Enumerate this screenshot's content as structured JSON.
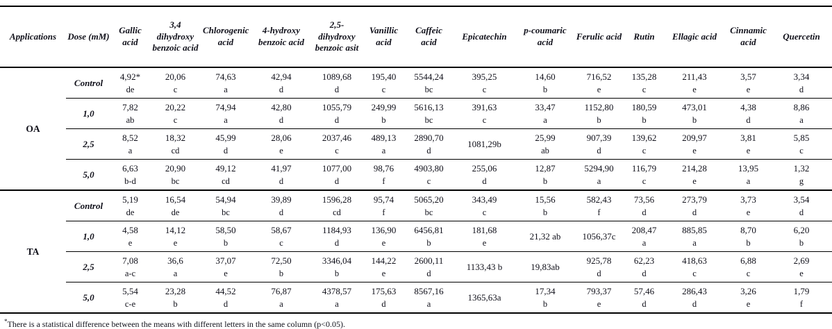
{
  "table": {
    "columns": [
      "Applications",
      "Dose (mM)",
      "Gallic acid",
      "3,4 dihydroxy benzoic acid",
      "Chlorogenic acid",
      "4-hydroxy benzoic acid",
      "2,5-dihydroxy benzoic asit",
      "Vanillic acid",
      "Caffeic acid",
      "Epicatechin",
      "p-coumaric acid",
      "Ferulic acid",
      "Rutin",
      "Ellagic acid",
      "Cinnamic acid",
      "Quercetin"
    ],
    "sections": [
      {
        "application": "OA",
        "rows": [
          {
            "dose": "Control",
            "cells": [
              [
                "4,92*",
                "de"
              ],
              [
                "20,06",
                "c"
              ],
              [
                "74,63",
                "a"
              ],
              [
                "42,94",
                "d"
              ],
              [
                "1089,68",
                "d"
              ],
              [
                "195,40",
                "c"
              ],
              [
                "5544,24",
                "bc"
              ],
              [
                "395,25",
                "c"
              ],
              [
                "14,60",
                "b"
              ],
              [
                "716,52",
                "e"
              ],
              [
                "135,28",
                "c"
              ],
              [
                "211,43",
                "e"
              ],
              [
                "3,57",
                "e"
              ],
              [
                "3,34",
                "d"
              ]
            ]
          },
          {
            "dose": "1,0",
            "cells": [
              [
                "7,82",
                "ab"
              ],
              [
                "20,22",
                "c"
              ],
              [
                "74,94",
                "a"
              ],
              [
                "42,80",
                "d"
              ],
              [
                "1055,79",
                "d"
              ],
              [
                "249,99",
                "b"
              ],
              [
                "5616,13",
                "bc"
              ],
              [
                "391,63",
                "c"
              ],
              [
                "33,47",
                "a"
              ],
              [
                "1152,80",
                "b"
              ],
              [
                "180,59",
                "b"
              ],
              [
                "473,01",
                "b"
              ],
              [
                "4,38",
                "d"
              ],
              [
                "8,86",
                "a"
              ]
            ]
          },
          {
            "dose": "2,5",
            "cells": [
              [
                "8,52",
                "a"
              ],
              [
                "18,32",
                "cd"
              ],
              [
                "45,99",
                "d"
              ],
              [
                "28,06",
                "e"
              ],
              [
                "2037,46",
                "c"
              ],
              [
                "489,13",
                "a"
              ],
              [
                "2890,70",
                "d"
              ],
              [
                "1081,29b",
                ""
              ],
              [
                "25,99",
                "ab"
              ],
              [
                "907,39",
                "d"
              ],
              [
                "139,62",
                "c"
              ],
              [
                "209,97",
                "e"
              ],
              [
                "3,81",
                "e"
              ],
              [
                "5,85",
                "c"
              ]
            ]
          },
          {
            "dose": "5,0",
            "cells": [
              [
                "6,63",
                "b-d"
              ],
              [
                "20,90",
                "bc"
              ],
              [
                "49,12",
                "cd"
              ],
              [
                "41,97",
                "d"
              ],
              [
                "1077,00",
                "d"
              ],
              [
                "98,76",
                "f"
              ],
              [
                "4903,80",
                "c"
              ],
              [
                "255,06",
                "d"
              ],
              [
                "12,87",
                "b"
              ],
              [
                "5294,90",
                "a"
              ],
              [
                "116,79",
                "c"
              ],
              [
                "214,28",
                "e"
              ],
              [
                "13,95",
                "a"
              ],
              [
                "1,32",
                "g"
              ]
            ]
          }
        ]
      },
      {
        "application": "TA",
        "rows": [
          {
            "dose": "Control",
            "cells": [
              [
                "5,19",
                "de"
              ],
              [
                "16,54",
                "de"
              ],
              [
                "54,94",
                "bc"
              ],
              [
                "39,89",
                "d"
              ],
              [
                "1596,28",
                "cd"
              ],
              [
                "95,74",
                "f"
              ],
              [
                "5065,20",
                "bc"
              ],
              [
                "343,49",
                "c"
              ],
              [
                "15,56",
                "b"
              ],
              [
                "582,43",
                "f"
              ],
              [
                "73,56",
                "d"
              ],
              [
                "273,79",
                "d"
              ],
              [
                "3,73",
                "e"
              ],
              [
                "3,54",
                "d"
              ]
            ]
          },
          {
            "dose": "1,0",
            "cells": [
              [
                "4,58",
                "e"
              ],
              [
                "14,12",
                "e"
              ],
              [
                "58,50",
                "b"
              ],
              [
                "58,67",
                "c"
              ],
              [
                "1184,93",
                "d"
              ],
              [
                "136,90",
                "e"
              ],
              [
                "6456,81",
                "b"
              ],
              [
                "181,68",
                "e"
              ],
              [
                "21,32 ab",
                ""
              ],
              [
                "1056,37c",
                ""
              ],
              [
                "208,47",
                "a"
              ],
              [
                "885,85",
                "a"
              ],
              [
                "8,70",
                "b"
              ],
              [
                "6,20",
                "b"
              ]
            ]
          },
          {
            "dose": "2,5",
            "cells": [
              [
                "7,08",
                "a-c"
              ],
              [
                "36,6",
                "a"
              ],
              [
                "37,07",
                "e"
              ],
              [
                "72,50",
                "b"
              ],
              [
                "3346,04",
                "b"
              ],
              [
                "144,22",
                "e"
              ],
              [
                "2600,11",
                "d"
              ],
              [
                "1133,43 b",
                ""
              ],
              [
                "19,83ab",
                ""
              ],
              [
                "925,78",
                "d"
              ],
              [
                "62,23",
                "d"
              ],
              [
                "418,63",
                "c"
              ],
              [
                "6,88",
                "c"
              ],
              [
                "2,69",
                "e"
              ]
            ]
          },
          {
            "dose": "5,0",
            "cells": [
              [
                "5,54",
                "c-e"
              ],
              [
                "23,28",
                "b"
              ],
              [
                "44,52",
                "d"
              ],
              [
                "76,87",
                "a"
              ],
              [
                "4378,57",
                "a"
              ],
              [
                "175,63",
                "d"
              ],
              [
                "8567,16",
                "a"
              ],
              [
                "1365,63a",
                ""
              ],
              [
                "17,34",
                "b"
              ],
              [
                "793,37",
                "e"
              ],
              [
                "57,46",
                "d"
              ],
              [
                "286,43",
                "d"
              ],
              [
                "3,26",
                "e"
              ],
              [
                "1,79",
                "f"
              ]
            ]
          }
        ]
      }
    ]
  },
  "footnote": {
    "marker": "*",
    "text": "There is a statistical difference between the means with different letters in the same column (p<0.05)."
  }
}
